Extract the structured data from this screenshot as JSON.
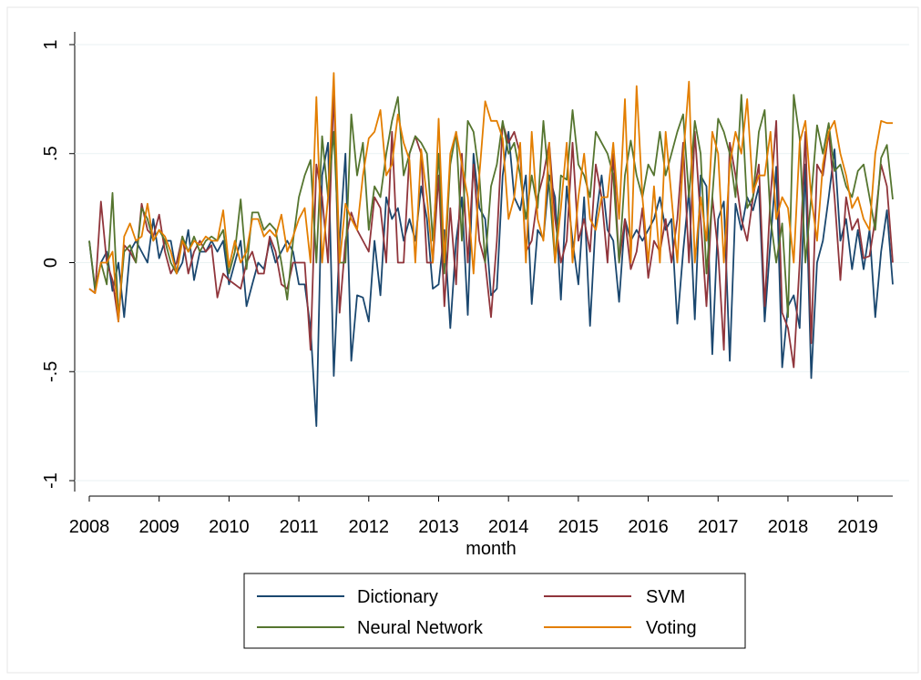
{
  "chart_data": {
    "type": "line",
    "x_label": "month",
    "x": [
      2008,
      2008.083,
      2008.167,
      2008.25,
      2008.333,
      2008.417,
      2008.5,
      2008.583,
      2008.667,
      2008.75,
      2008.833,
      2008.917,
      2009,
      2009.083,
      2009.167,
      2009.25,
      2009.333,
      2009.417,
      2009.5,
      2009.583,
      2009.667,
      2009.75,
      2009.833,
      2009.917,
      2010,
      2010.083,
      2010.167,
      2010.25,
      2010.333,
      2010.417,
      2010.5,
      2010.583,
      2010.667,
      2010.75,
      2010.833,
      2010.917,
      2011,
      2011.083,
      2011.167,
      2011.25,
      2011.333,
      2011.417,
      2011.5,
      2011.583,
      2011.667,
      2011.75,
      2011.833,
      2011.917,
      2012,
      2012.083,
      2012.167,
      2012.25,
      2012.333,
      2012.417,
      2012.5,
      2012.583,
      2012.667,
      2012.75,
      2012.833,
      2012.917,
      2013,
      2013.083,
      2013.167,
      2013.25,
      2013.333,
      2013.417,
      2013.5,
      2013.583,
      2013.667,
      2013.75,
      2013.833,
      2013.917,
      2014,
      2014.083,
      2014.167,
      2014.25,
      2014.333,
      2014.417,
      2014.5,
      2014.583,
      2014.667,
      2014.75,
      2014.833,
      2014.917,
      2015,
      2015.083,
      2015.167,
      2015.25,
      2015.333,
      2015.417,
      2015.5,
      2015.583,
      2015.667,
      2015.75,
      2015.833,
      2015.917,
      2016,
      2016.083,
      2016.167,
      2016.25,
      2016.333,
      2016.417,
      2016.5,
      2016.583,
      2016.667,
      2016.75,
      2016.833,
      2016.917,
      2017,
      2017.083,
      2017.167,
      2017.25,
      2017.333,
      2017.417,
      2017.5,
      2017.583,
      2017.667,
      2017.75,
      2017.833,
      2017.917,
      2018,
      2018.083,
      2018.167,
      2018.25,
      2018.333,
      2018.417,
      2018.5,
      2018.583,
      2018.667,
      2018.75,
      2018.833,
      2018.917,
      2019,
      2019.083,
      2019.167,
      2019.25,
      2019.333,
      2019.417,
      2019.5
    ],
    "series": [
      {
        "name": "Dictionary",
        "color": "#1a476f",
        "values": [
          0.1,
          -0.13,
          0.0,
          0.05,
          -0.13,
          0.0,
          -0.25,
          0.05,
          0.1,
          0.05,
          0.0,
          0.2,
          0.02,
          0.1,
          0.1,
          -0.05,
          0.0,
          0.15,
          -0.08,
          0.05,
          0.05,
          0.1,
          0.05,
          0.1,
          -0.1,
          0.0,
          0.1,
          -0.2,
          -0.1,
          0.0,
          -0.03,
          0.1,
          0.0,
          0.05,
          0.1,
          0.05,
          -0.1,
          -0.1,
          -0.3,
          -0.75,
          0.4,
          0.55,
          -0.52,
          0.1,
          0.5,
          -0.45,
          -0.15,
          -0.16,
          -0.27,
          0.1,
          -0.15,
          0.3,
          0.2,
          0.25,
          0.1,
          0.2,
          0.1,
          0.35,
          0.2,
          -0.12,
          -0.1,
          0.15,
          -0.3,
          0.1,
          0.3,
          -0.24,
          0.5,
          0.25,
          0.2,
          -0.15,
          -0.12,
          0.4,
          0.6,
          0.3,
          0.24,
          0.4,
          -0.19,
          0.15,
          0.11,
          0.4,
          0.3,
          -0.17,
          0.35,
          0.1,
          -0.1,
          0.3,
          -0.29,
          0.2,
          0.4,
          0.15,
          0.1,
          -0.18,
          0.2,
          0.1,
          0.15,
          0.1,
          0.15,
          0.2,
          0.3,
          0.15,
          0.2,
          -0.28,
          0.05,
          0.33,
          -0.26,
          0.4,
          0.35,
          -0.42,
          0.2,
          0.28,
          -0.45,
          0.27,
          0.15,
          0.3,
          0.24,
          0.35,
          -0.27,
          0.1,
          0.44,
          -0.48,
          -0.2,
          -0.15,
          -0.3,
          0.45,
          -0.53,
          0.0,
          0.1,
          0.3,
          0.52,
          0.1,
          0.2,
          -0.03,
          0.15,
          -0.03,
          0.15,
          -0.25,
          0.05,
          0.24,
          -0.1
        ]
      },
      {
        "name": "SVM",
        "color": "#90353b",
        "values": [
          -0.12,
          -0.14,
          0.28,
          0.0,
          -0.08,
          -0.27,
          0.08,
          0.05,
          0.0,
          0.27,
          0.15,
          0.12,
          0.22,
          0.05,
          -0.05,
          0.0,
          0.12,
          -0.05,
          0.05,
          0.1,
          0.05,
          0.08,
          -0.16,
          -0.05,
          -0.08,
          -0.1,
          -0.12,
          0.0,
          0.05,
          -0.05,
          -0.05,
          0.12,
          0.05,
          -0.1,
          -0.12,
          0.0,
          0.0,
          0.0,
          -0.4,
          0.45,
          0.3,
          0.0,
          0.8,
          -0.23,
          0.1,
          0.23,
          0.15,
          0.1,
          0.05,
          0.3,
          0.25,
          0.0,
          0.6,
          0.0,
          0.0,
          0.5,
          0.58,
          0.5,
          0.0,
          0.0,
          0.4,
          -0.2,
          0.25,
          -0.1,
          0.5,
          0.0,
          0.45,
          0.1,
          0.0,
          -0.25,
          0.1,
          0.64,
          0.55,
          0.6,
          0.5,
          0.05,
          0.1,
          0.3,
          0.4,
          0.55,
          0.2,
          0.0,
          0.1,
          0.55,
          0.1,
          0.2,
          0.05,
          0.45,
          0.3,
          0.0,
          0.5,
          0.0,
          0.2,
          -0.03,
          0.05,
          0.25,
          -0.07,
          0.1,
          0.05,
          0.2,
          0.0,
          0.2,
          0.55,
          0.0,
          0.6,
          0.2,
          -0.2,
          0.3,
          0.05,
          -0.4,
          0.55,
          0.4,
          0.2,
          0.1,
          0.3,
          0.45,
          -0.2,
          0.3,
          0.65,
          -0.23,
          -0.3,
          -0.48,
          0.0,
          0.6,
          -0.37,
          0.45,
          0.4,
          0.6,
          0.3,
          -0.08,
          0.3,
          0.15,
          0.2,
          0.02,
          0.03,
          0.2,
          0.45,
          0.35,
          0.0
        ]
      },
      {
        "name": "Neural Network",
        "color": "#55752f",
        "values": [
          0.1,
          -0.12,
          0.0,
          -0.1,
          0.32,
          -0.25,
          0.05,
          0.08,
          0.0,
          0.25,
          0.2,
          0.1,
          0.15,
          0.1,
          0.0,
          -0.05,
          0.12,
          0.05,
          0.12,
          0.05,
          0.1,
          0.12,
          0.1,
          0.15,
          -0.05,
          0.05,
          0.29,
          -0.03,
          0.23,
          0.23,
          0.15,
          0.18,
          0.15,
          0.0,
          -0.17,
          0.1,
          0.3,
          0.4,
          0.47,
          0.0,
          0.58,
          0.3,
          0.6,
          0.0,
          0.0,
          0.68,
          0.4,
          0.55,
          0.15,
          0.35,
          0.3,
          0.5,
          0.65,
          0.76,
          0.4,
          0.5,
          0.58,
          0.55,
          0.5,
          0.1,
          0.5,
          -0.05,
          0.45,
          0.6,
          0.1,
          0.65,
          0.6,
          0.4,
          0.0,
          0.35,
          0.45,
          0.65,
          0.5,
          0.55,
          0.4,
          0.2,
          0.4,
          0.25,
          0.65,
          0.35,
          0.0,
          0.4,
          0.38,
          0.7,
          0.45,
          0.4,
          0.3,
          0.6,
          0.55,
          0.5,
          0.4,
          0.0,
          0.4,
          0.56,
          0.4,
          0.3,
          0.45,
          0.4,
          0.6,
          0.4,
          0.5,
          0.6,
          0.68,
          0.3,
          0.65,
          0.5,
          -0.05,
          0.3,
          0.66,
          0.6,
          0.5,
          0.3,
          0.77,
          0.25,
          0.3,
          0.6,
          0.7,
          0.2,
          0.0,
          0.18,
          -0.25,
          0.77,
          0.57,
          0.0,
          0.3,
          0.63,
          0.5,
          0.64,
          0.42,
          0.45,
          0.35,
          0.3,
          0.42,
          0.45,
          0.3,
          0.15,
          0.48,
          0.54,
          0.29
        ]
      },
      {
        "name": "Voting",
        "color": "#e37e00",
        "values": [
          -0.12,
          -0.14,
          0.0,
          0.0,
          0.05,
          -0.27,
          0.12,
          0.18,
          0.1,
          0.12,
          0.27,
          0.1,
          0.15,
          0.12,
          0.05,
          -0.05,
          0.1,
          0.05,
          0.1,
          0.08,
          0.12,
          0.1,
          0.1,
          0.24,
          -0.02,
          0.1,
          0.0,
          0.05,
          0.2,
          0.2,
          0.12,
          0.15,
          0.12,
          0.22,
          0.05,
          0.12,
          0.2,
          0.25,
          0.0,
          0.76,
          0.0,
          0.3,
          0.87,
          0.0,
          0.27,
          0.2,
          0.15,
          0.4,
          0.57,
          0.6,
          0.7,
          0.4,
          0.45,
          0.68,
          0.55,
          0.47,
          0.0,
          0.52,
          0.3,
          0.0,
          0.66,
          0.0,
          0.5,
          0.6,
          0.45,
          0.3,
          -0.05,
          0.4,
          0.74,
          0.65,
          0.65,
          0.57,
          0.2,
          0.3,
          0.55,
          0.0,
          0.6,
          0.2,
          0.1,
          0.55,
          0.0,
          0.25,
          0.55,
          0.0,
          0.3,
          0.5,
          0.2,
          0.15,
          0.3,
          0.3,
          0.55,
          0.2,
          0.75,
          0.0,
          0.81,
          0.3,
          0.0,
          0.35,
          0.0,
          0.6,
          0.3,
          0.0,
          0.48,
          0.83,
          0.0,
          0.3,
          0.1,
          0.6,
          0.5,
          0.0,
          0.45,
          0.6,
          0.5,
          0.75,
          0.32,
          0.4,
          0.4,
          0.6,
          0.2,
          0.3,
          0.25,
          0.0,
          0.55,
          0.65,
          0.3,
          0.1,
          0.45,
          0.6,
          0.65,
          0.5,
          0.4,
          0.25,
          0.3,
          0.2,
          0.15,
          0.5,
          0.65,
          0.64,
          0.64
        ]
      }
    ],
    "xlim": [
      2008,
      2019.5
    ],
    "xticks": [
      2008,
      2009,
      2010,
      2011,
      2012,
      2013,
      2014,
      2015,
      2016,
      2017,
      2018,
      2019
    ],
    "ylim": [
      -1,
      1
    ],
    "yticks": [
      -1,
      {
        "value": -0.5,
        "label": "-.5"
      },
      0,
      {
        "value": 0.5,
        "label": ".5"
      },
      1
    ],
    "grid": true
  }
}
